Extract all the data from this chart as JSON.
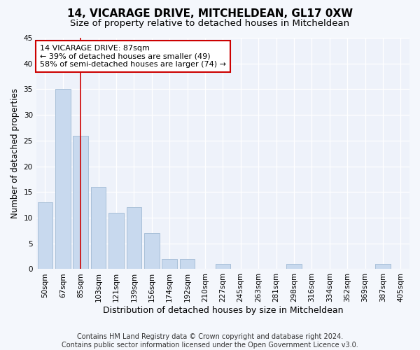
{
  "title": "14, VICARAGE DRIVE, MITCHELDEAN, GL17 0XW",
  "subtitle": "Size of property relative to detached houses in Mitcheldean",
  "xlabel": "Distribution of detached houses by size in Mitcheldean",
  "ylabel": "Number of detached properties",
  "categories": [
    "50sqm",
    "67sqm",
    "85sqm",
    "103sqm",
    "121sqm",
    "139sqm",
    "156sqm",
    "174sqm",
    "192sqm",
    "210sqm",
    "227sqm",
    "245sqm",
    "263sqm",
    "281sqm",
    "298sqm",
    "316sqm",
    "334sqm",
    "352sqm",
    "369sqm",
    "387sqm",
    "405sqm"
  ],
  "values": [
    13,
    35,
    26,
    16,
    11,
    12,
    7,
    2,
    2,
    0,
    1,
    0,
    0,
    0,
    1,
    0,
    0,
    0,
    0,
    1,
    0
  ],
  "bar_color": "#c8d9ee",
  "bar_edge_color": "#a8bfd8",
  "ylim": [
    0,
    45
  ],
  "yticks": [
    0,
    5,
    10,
    15,
    20,
    25,
    30,
    35,
    40,
    45
  ],
  "property_line_x": 2,
  "property_line_color": "#cc0000",
  "annotation_line1": "14 VICARAGE DRIVE: 87sqm",
  "annotation_line2": "← 39% of detached houses are smaller (49)",
  "annotation_line3": "58% of semi-detached houses are larger (74) →",
  "annotation_box_color": "#ffffff",
  "annotation_box_edge": "#cc0000",
  "footer_line1": "Contains HM Land Registry data © Crown copyright and database right 2024.",
  "footer_line2": "Contains public sector information licensed under the Open Government Licence v3.0.",
  "bg_color": "#f4f7fc",
  "plot_bg_color": "#eef2fa",
  "title_fontsize": 11,
  "subtitle_fontsize": 9.5,
  "ylabel_fontsize": 8.5,
  "xlabel_fontsize": 9,
  "tick_fontsize": 7.5,
  "annotation_fontsize": 8,
  "footer_fontsize": 7
}
